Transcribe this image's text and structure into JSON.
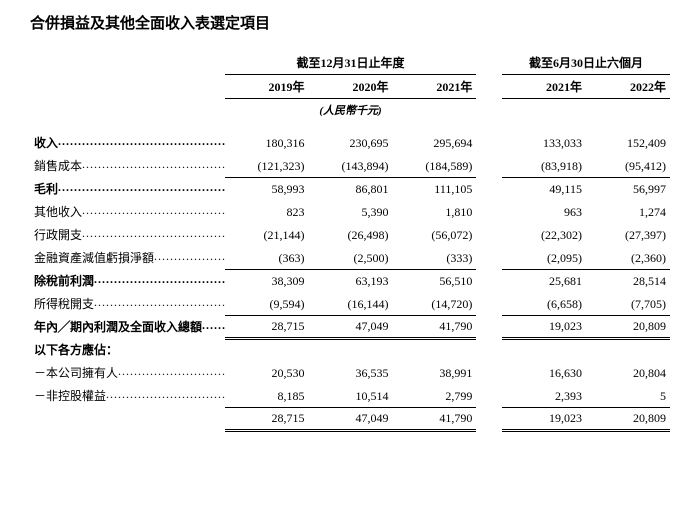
{
  "title": "合併損益及其他全面收入表選定項目",
  "group_headers": {
    "annual": "截至12月31日止年度",
    "half": "截至6月30日止六個月"
  },
  "year_headers": [
    "2019年",
    "2020年",
    "2021年",
    "2021年",
    "2022年"
  ],
  "currency_note": "(人民幣千元)",
  "rows": [
    {
      "label": "收入",
      "v": [
        "180,316",
        "230,695",
        "295,694",
        "133,033",
        "152,409"
      ],
      "bold": true
    },
    {
      "label": "銷售成本",
      "v": [
        "(121,323)",
        "(143,894)",
        "(184,589)",
        "(83,918)",
        "(95,412)"
      ],
      "line": "thin"
    },
    {
      "label": "毛利",
      "v": [
        "58,993",
        "86,801",
        "111,105",
        "49,115",
        "56,997"
      ],
      "bold": true
    },
    {
      "label": "其他收入",
      "v": [
        "823",
        "5,390",
        "1,810",
        "963",
        "1,274"
      ]
    },
    {
      "label": "行政開支",
      "v": [
        "(21,144)",
        "(26,498)",
        "(56,072)",
        "(22,302)",
        "(27,397)"
      ]
    },
    {
      "label": "金融資產減值虧損淨額",
      "v": [
        "(363)",
        "(2,500)",
        "(333)",
        "(2,095)",
        "(2,360)"
      ],
      "line": "thin"
    },
    {
      "label": "除稅前利潤",
      "v": [
        "38,309",
        "63,193",
        "56,510",
        "25,681",
        "28,514"
      ],
      "bold": true
    },
    {
      "label": "所得稅開支",
      "v": [
        "(9,594)",
        "(16,144)",
        "(14,720)",
        "(6,658)",
        "(7,705)"
      ],
      "line": "thin"
    },
    {
      "label": "年內╱期內利潤及全面收入總額",
      "v": [
        "28,715",
        "47,049",
        "41,790",
        "19,023",
        "20,809"
      ],
      "bold": true,
      "line": "dbl"
    },
    {
      "label": "以下各方應佔：",
      "v": [
        "",
        "",
        "",
        "",
        ""
      ],
      "bold": true,
      "nodots": true
    },
    {
      "label": "－本公司擁有人",
      "v": [
        "20,530",
        "36,535",
        "38,991",
        "16,630",
        "20,804"
      ]
    },
    {
      "label": "－非控股權益",
      "v": [
        "8,185",
        "10,514",
        "2,799",
        "2,393",
        "5"
      ],
      "line": "thin"
    },
    {
      "label": "",
      "v": [
        "28,715",
        "47,049",
        "41,790",
        "19,023",
        "20,809"
      ],
      "line": "dbl",
      "nodots": true
    }
  ],
  "colors": {
    "text": "#000000",
    "background": "#ffffff"
  }
}
